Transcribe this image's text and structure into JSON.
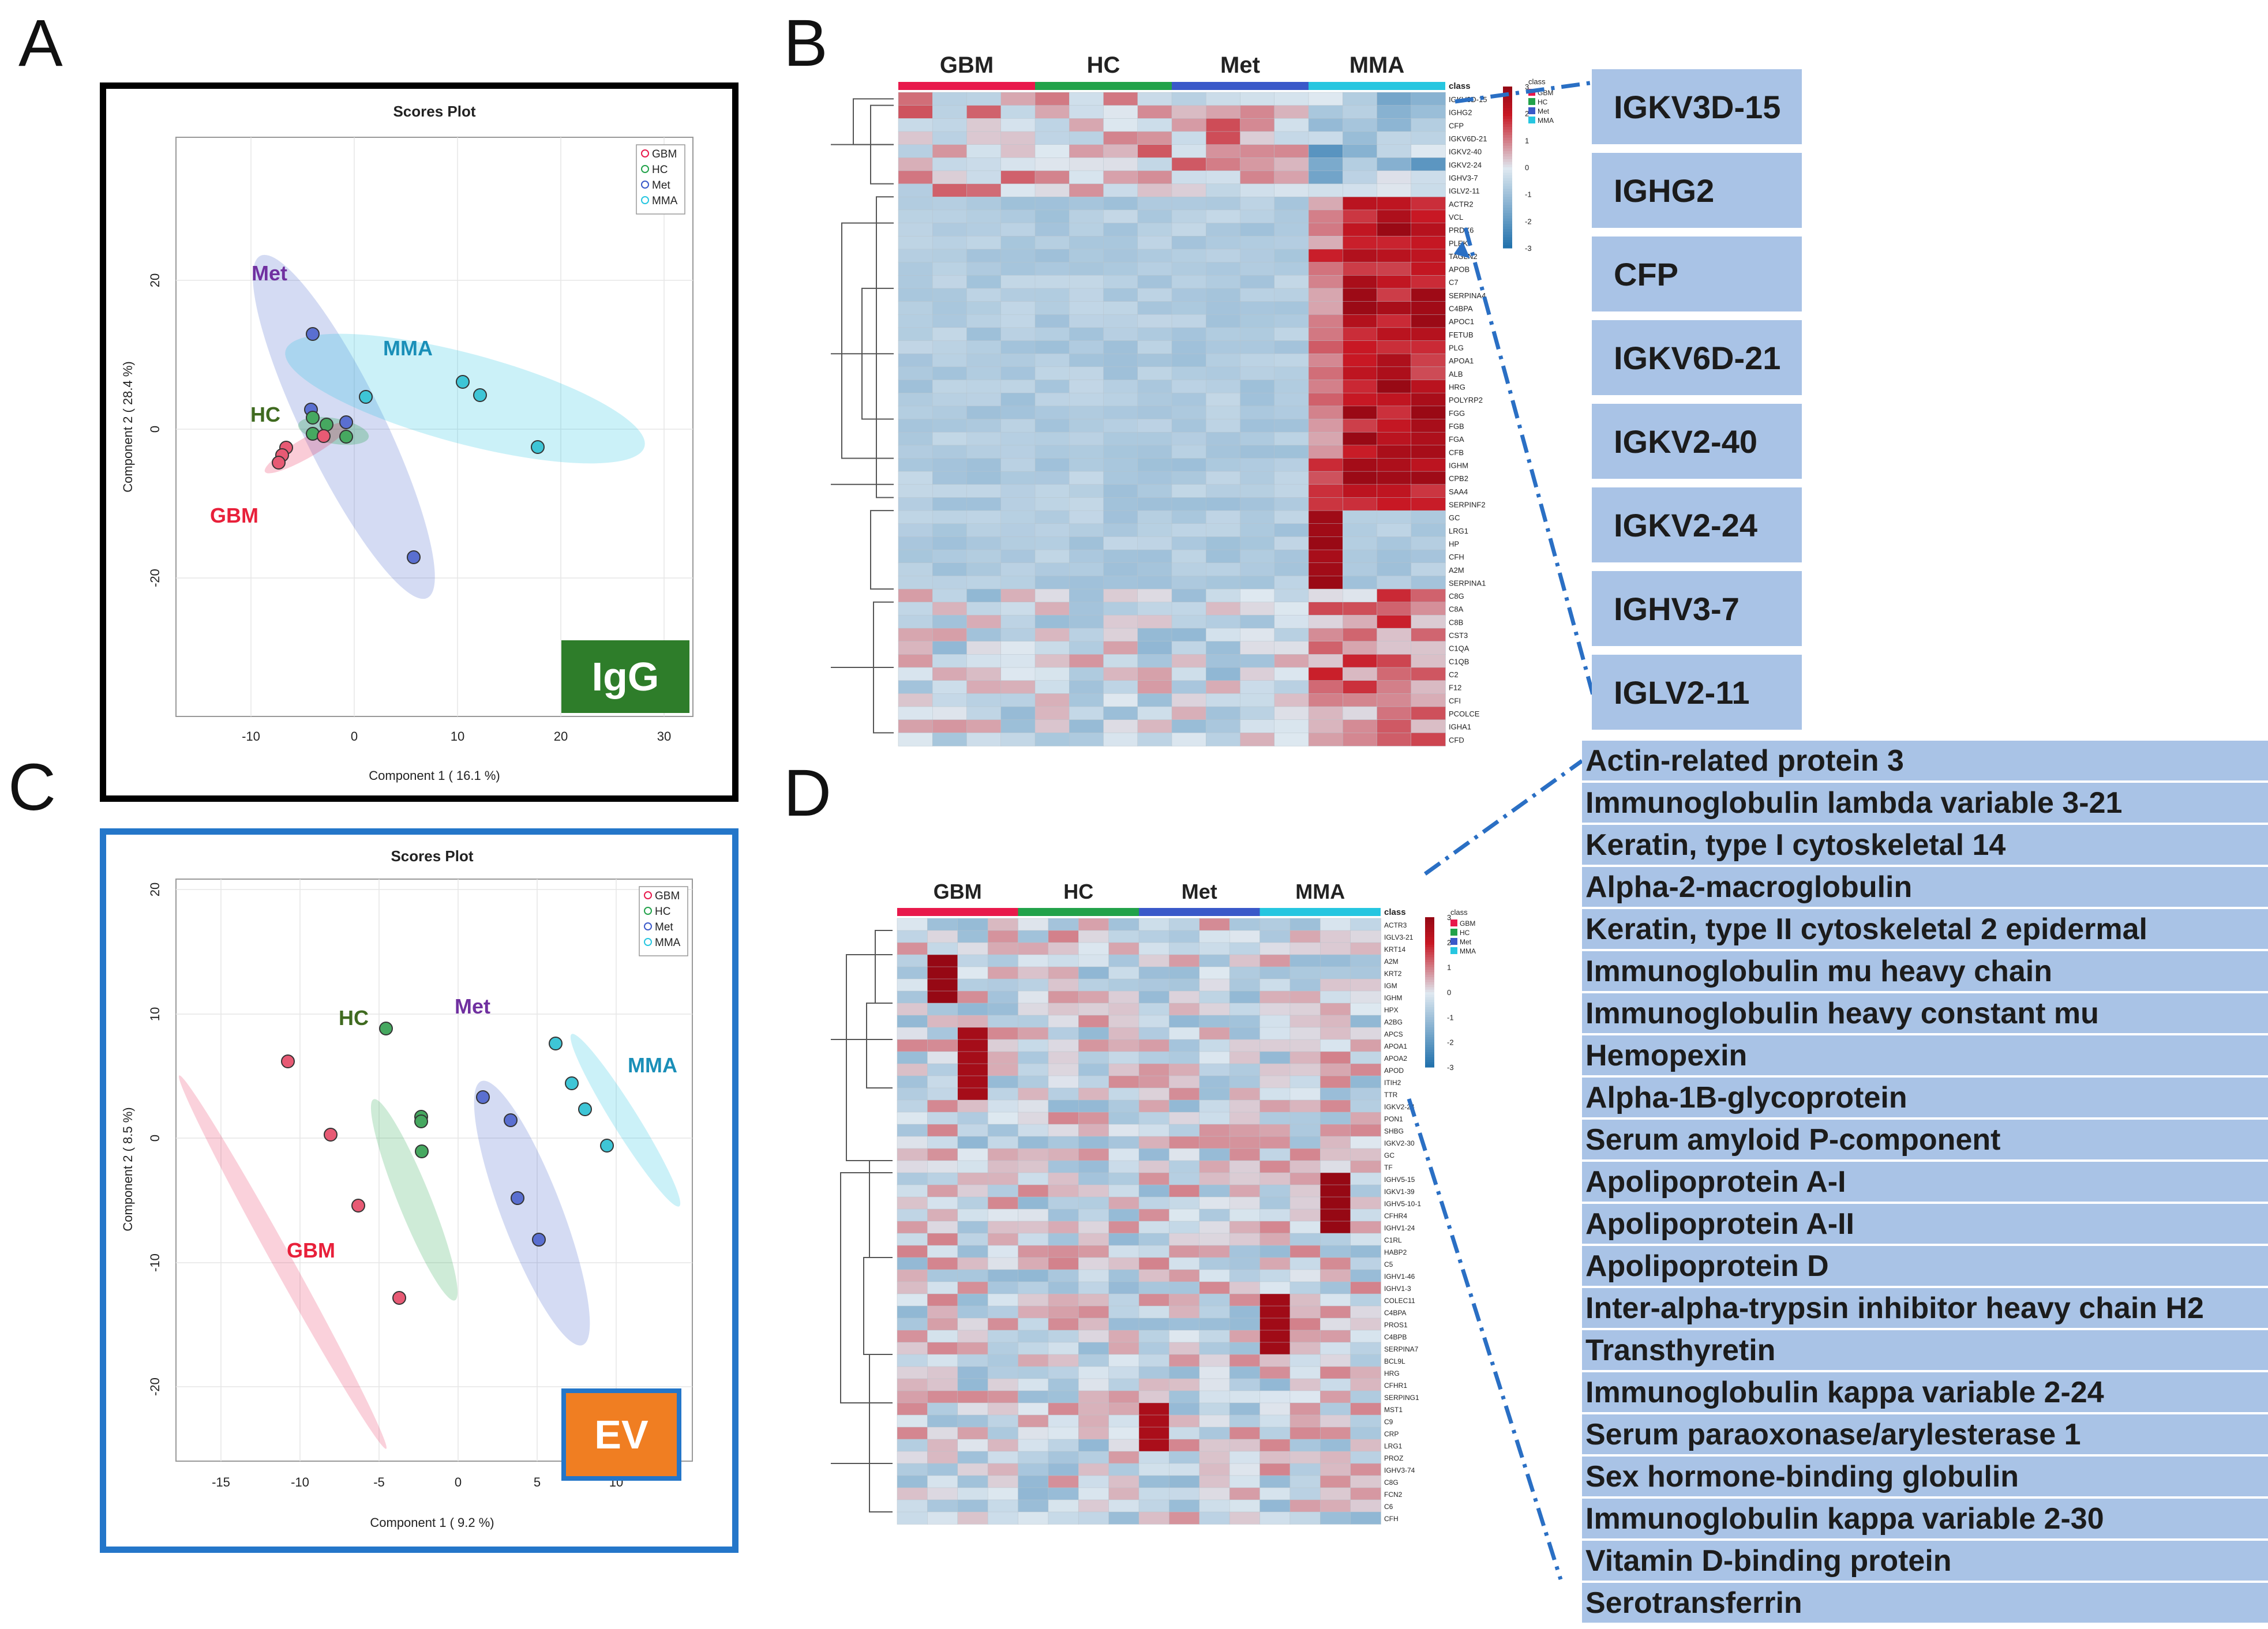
{
  "panel_labels": {
    "a": "A",
    "b": "B",
    "c": "C",
    "d": "D"
  },
  "colors": {
    "GBM": "#e8194b",
    "HC": "#22a24a",
    "Met": "#3a59c9",
    "MMA": "#26c6e0",
    "box_a_border": "#000000",
    "box_c_border": "#2476c9",
    "igg_badge": "#2e7d2a",
    "ev_badge": "#f07e22",
    "list_bg": "#a9c3e6",
    "connector": "#2a6fc4"
  },
  "plot_a": {
    "title": "Scores Plot",
    "xlabel": "Component 1 ( 16.1 %)",
    "ylabel": "Component 2 ( 28.4 %)",
    "xticks": [
      "-10",
      "0",
      "10",
      "20",
      "30"
    ],
    "yticks": [
      "20",
      "0",
      "-20"
    ],
    "legend": [
      "GBM",
      "HC",
      "Met",
      "MMA"
    ],
    "group_labels": {
      "GBM": "GBM",
      "HC": "HC",
      "Met": "Met",
      "MMA": "MMA"
    },
    "badge": "IgG"
  },
  "plot_c": {
    "title": "Scores Plot",
    "xlabel": "Component 1 ( 9.2 %)",
    "ylabel": "Component 2 ( 8.5 %)",
    "xticks": [
      "-15",
      "-10",
      "-5",
      "0",
      "5",
      "10"
    ],
    "yticks": [
      "20",
      "10",
      "0",
      "-10",
      "-20"
    ],
    "legend": [
      "GBM",
      "HC",
      "Met",
      "MMA"
    ],
    "group_labels": {
      "GBM": "GBM",
      "HC": "HC",
      "Met": "Met",
      "MMA": "MMA"
    },
    "badge": "EV"
  },
  "heatmap_b": {
    "groups": [
      "GBM",
      "HC",
      "Met",
      "MMA"
    ],
    "class_label": "class",
    "legend_title": "class",
    "legend_items": [
      "GBM",
      "HC",
      "Met",
      "MMA"
    ],
    "scale_ticks": [
      "3",
      "2",
      "1",
      "0",
      "-1",
      "-2",
      "-3"
    ],
    "rows": [
      "IGKV3D-15",
      "IGHG2",
      "CFP",
      "IGKV6D-21",
      "IGKV2-40",
      "IGKV2-24",
      "IGHV3-7",
      "IGLV2-11",
      "ACTR2",
      "VCL",
      "PRDX6",
      "PLEK",
      "TAGLN2",
      "APOB",
      "C7",
      "SERPINA4",
      "C4BPA",
      "APOC1",
      "FETUB",
      "PLG",
      "APOA1",
      "ALB",
      "HRG",
      "POLYRP2",
      "FGG",
      "FGB",
      "FGA",
      "CFB",
      "IGHM",
      "CPB2",
      "SAA4",
      "SERPINF2",
      "GC",
      "LRG1",
      "HP",
      "CFH",
      "A2M",
      "SERPINA1",
      "C8G",
      "C8A",
      "C8B",
      "CST3",
      "C1QA",
      "C1QB",
      "C2",
      "F12",
      "CFI",
      "PCOLCE",
      "IGHA1",
      "CFD"
    ]
  },
  "heatmap_d": {
    "groups": [
      "GBM",
      "HC",
      "Met",
      "MMA"
    ],
    "class_label": "class",
    "legend_title": "class",
    "legend_items": [
      "GBM",
      "HC",
      "Met",
      "MMA"
    ],
    "scale_ticks": [
      "3",
      "2",
      "1",
      "0",
      "-1",
      "-2",
      "-3"
    ],
    "rows": [
      "ACTR3",
      "IGLV3-21",
      "KRT14",
      "A2M",
      "KRT2",
      "IGM",
      "IGHM",
      "HPX",
      "A2BG",
      "APCS",
      "APOA1",
      "APOA2",
      "APOD",
      "ITIH2",
      "TTR",
      "IGKV2-24",
      "PON1",
      "SHBG",
      "IGKV2-30",
      "GC",
      "TF",
      "IGHV5-15",
      "IGKV1-39",
      "IGHV5-10-1",
      "CFHR4",
      "IGHV1-24",
      "C1RL",
      "HABP2",
      "C5",
      "IGHV1-46",
      "IGHV1-3",
      "COLEC11",
      "C4BPA",
      "PROS1",
      "C4BPB",
      "SERPINA7",
      "BCL9L",
      "HRG",
      "CFHR1",
      "SERPING1",
      "MST1",
      "C9",
      "CRP",
      "LRG1",
      "PROZ",
      "IGHV3-74",
      "C8G",
      "FCN2",
      "C6",
      "CFH"
    ]
  },
  "igg_list": [
    "IGKV3D-15",
    "IGHG2",
    "CFP",
    "IGKV6D-21",
    "IGKV2-40",
    "IGKV2-24",
    "IGHV3-7",
    "IGLV2-11"
  ],
  "ev_list": [
    "Actin-related protein 3",
    "Immunoglobulin lambda variable 3-21",
    "Keratin, type I cytoskeletal 14",
    "Alpha-2-macroglobulin",
    "Keratin, type II cytoskeletal 2 epidermal",
    "Immunoglobulin mu heavy chain",
    "Immunoglobulin heavy constant mu",
    "Hemopexin",
    "Alpha-1B-glycoprotein",
    "Serum amyloid P-component",
    "Apolipoprotein A-I",
    "Apolipoprotein A-II",
    "Apolipoprotein D",
    "Inter-alpha-trypsin inhibitor heavy chain H2",
    "Transthyretin",
    "Immunoglobulin kappa variable 2-24",
    "Serum paraoxonase/arylesterase 1",
    "Sex hormone-binding globulin",
    "Immunoglobulin kappa variable 2-30",
    "Vitamin D-binding protein",
    "Serotransferrin"
  ]
}
